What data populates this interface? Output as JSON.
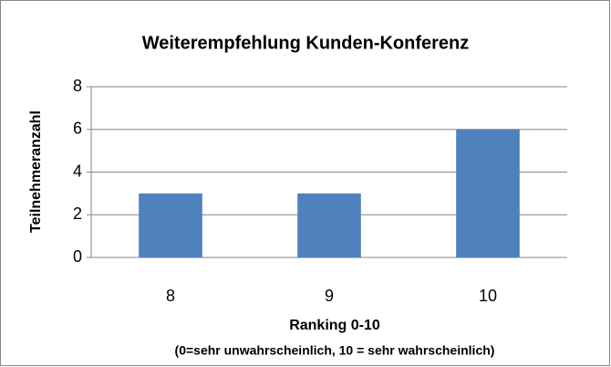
{
  "chart_data": {
    "type": "bar",
    "title": "Weiterempfehlung Kunden-Konferenz",
    "x_label": "Ranking 0-10",
    "x_sublabel": "(0=sehr unwahrscheinlich, 10 = sehr wahrscheinlich)",
    "y_label": "Teilnehmeranzahl",
    "categories": [
      "8",
      "9",
      "10"
    ],
    "values": [
      3,
      3,
      6
    ],
    "color": "#4f81bd",
    "ylim": [
      0,
      8
    ],
    "yticks": [
      0,
      2,
      4,
      6,
      8
    ],
    "grid": true
  }
}
